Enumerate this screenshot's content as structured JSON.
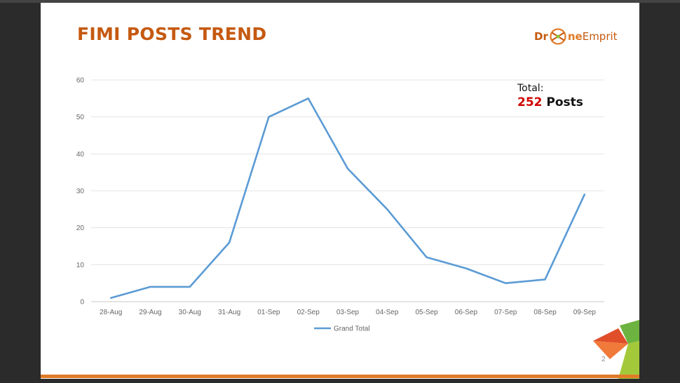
{
  "slide": {
    "title": "FIMI POSTS TREND",
    "page_number": "2",
    "logo": {
      "part1": "Dr",
      "part2": "ne",
      "part3": "Emprit",
      "mark_icon": "drone-logo-icon"
    },
    "total": {
      "label": "Total:",
      "value": "252",
      "unit": "Posts"
    },
    "colors": {
      "title": "#c55a11",
      "accent": "#e07b28",
      "total_value": "#d00000",
      "line": "#5b9bd5"
    }
  },
  "chart_data": {
    "type": "line",
    "title": "",
    "xlabel": "",
    "ylabel": "",
    "categories": [
      "28-Aug",
      "29-Aug",
      "30-Aug",
      "31-Aug",
      "01-Sep",
      "02-Sep",
      "03-Sep",
      "04-Sep",
      "05-Sep",
      "06-Sep",
      "07-Sep",
      "08-Sep",
      "09-Sep"
    ],
    "series": [
      {
        "name": "Grand Total",
        "values": [
          1,
          4,
          4,
          16,
          50,
          55,
          36,
          25,
          12,
          9,
          5,
          6,
          29
        ],
        "color": "#5b9bd5"
      }
    ],
    "ylim": [
      0,
      60
    ],
    "yticks": [
      0,
      10,
      20,
      30,
      40,
      50,
      60
    ],
    "grid": true,
    "legend": "bottom"
  }
}
